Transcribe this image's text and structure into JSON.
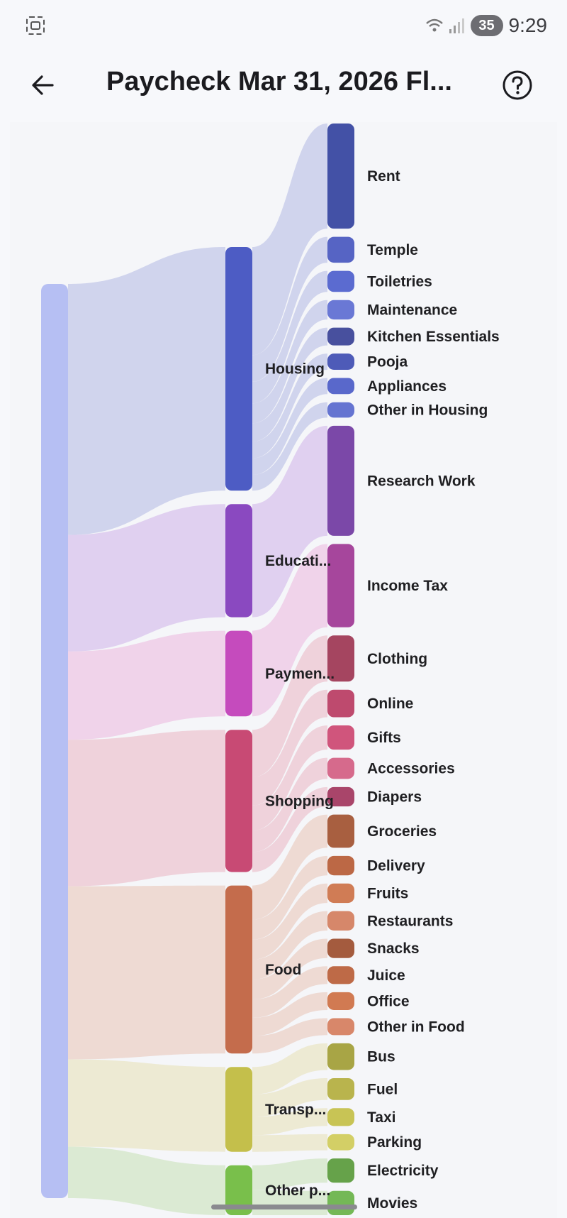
{
  "status_bar": {
    "time": "9:29",
    "battery": "35",
    "left_icon": "screenshot-icon",
    "network_icon": "wifi-signal-icon"
  },
  "app_bar": {
    "title": "Paycheck Mar 31, 2026 Fl...",
    "back_icon": "arrow-back-icon",
    "help_icon": "help-circle-icon"
  },
  "colors": {
    "income": "#b6bff3",
    "Housing": "#4d5cc4",
    "Educati...": "#8a49c0",
    "Paymen...": "#c54bbd",
    "Shopping": "#c84a74",
    "Food": "#c46c4c",
    "Transp...": "#c4bf4b",
    "Other p...": "#79bf4b"
  },
  "sankey": {
    "categories": [
      {
        "label": "Housing",
        "color": "#4d5cc4",
        "link": "#c9ceeb",
        "items": [
          {
            "label": "Rent",
            "color": "#4351a6",
            "weight": 130
          },
          {
            "label": "Temple",
            "color": "#5664c4",
            "weight": 32
          },
          {
            "label": "Toiletries",
            "color": "#5b6bd0",
            "weight": 26
          },
          {
            "label": "Maintenance",
            "color": "#6a78d5",
            "weight": 24
          },
          {
            "label": "Kitchen Essentials",
            "color": "#48509e",
            "weight": 22
          },
          {
            "label": "Pooja",
            "color": "#4e5bb8",
            "weight": 20
          },
          {
            "label": "Appliances",
            "color": "#5968cb",
            "weight": 20
          },
          {
            "label": "Other in Housing",
            "color": "#6574d1",
            "weight": 19
          }
        ]
      },
      {
        "label": "Educati...",
        "color": "#8a49c0",
        "link": "#dcc9ee",
        "items": [
          {
            "label": "Research Work",
            "color": "#7b48a8",
            "weight": 136
          }
        ]
      },
      {
        "label": "Paymen...",
        "color": "#c54bbd",
        "link": "#efcde8",
        "items": [
          {
            "label": "Income Tax",
            "color": "#a6469c",
            "weight": 103
          }
        ]
      },
      {
        "label": "Shopping",
        "color": "#c84a74",
        "link": "#edcbd6",
        "items": [
          {
            "label": "Clothing",
            "color": "#a54560",
            "weight": 57
          },
          {
            "label": "Online",
            "color": "#be4a6e",
            "weight": 34
          },
          {
            "label": "Gifts",
            "color": "#d0557c",
            "weight": 30
          },
          {
            "label": "Accessories",
            "color": "#d66a8c",
            "weight": 26
          },
          {
            "label": "Diapers",
            "color": "#a9456a",
            "weight": 24
          }
        ]
      },
      {
        "label": "Food",
        "color": "#c46c4c",
        "link": "#ecd5cd",
        "items": [
          {
            "label": "Groceries",
            "color": "#a85f40",
            "weight": 41
          },
          {
            "label": "Delivery",
            "color": "#bc6845",
            "weight": 24
          },
          {
            "label": "Fruits",
            "color": "#d07c55",
            "weight": 24
          },
          {
            "label": "Restaurants",
            "color": "#d6876a",
            "weight": 24
          },
          {
            "label": "Snacks",
            "color": "#a45b3e",
            "weight": 24
          },
          {
            "label": "Juice",
            "color": "#be6a47",
            "weight": 22
          },
          {
            "label": "Office",
            "color": "#d17a52",
            "weight": 22
          },
          {
            "label": "Other in Food",
            "color": "#d8876a",
            "weight": 21
          }
        ]
      },
      {
        "label": "Transp...",
        "color": "#c4bf4b",
        "link": "#ebe8cc",
        "items": [
          {
            "label": "Bus",
            "color": "#a8a545",
            "weight": 33
          },
          {
            "label": "Fuel",
            "color": "#b9b44d",
            "weight": 27
          },
          {
            "label": "Taxi",
            "color": "#c8c455",
            "weight": 22
          },
          {
            "label": "Parking",
            "color": "#d3cf66",
            "weight": 20
          }
        ]
      },
      {
        "label": "Other p...",
        "color": "#79bf4b",
        "link": "#d6e8cc",
        "items": [
          {
            "label": "Electricity",
            "color": "#66a24a",
            "weight": 30
          },
          {
            "label": "Movies",
            "color": "#74b856",
            "weight": 30
          }
        ]
      }
    ]
  }
}
